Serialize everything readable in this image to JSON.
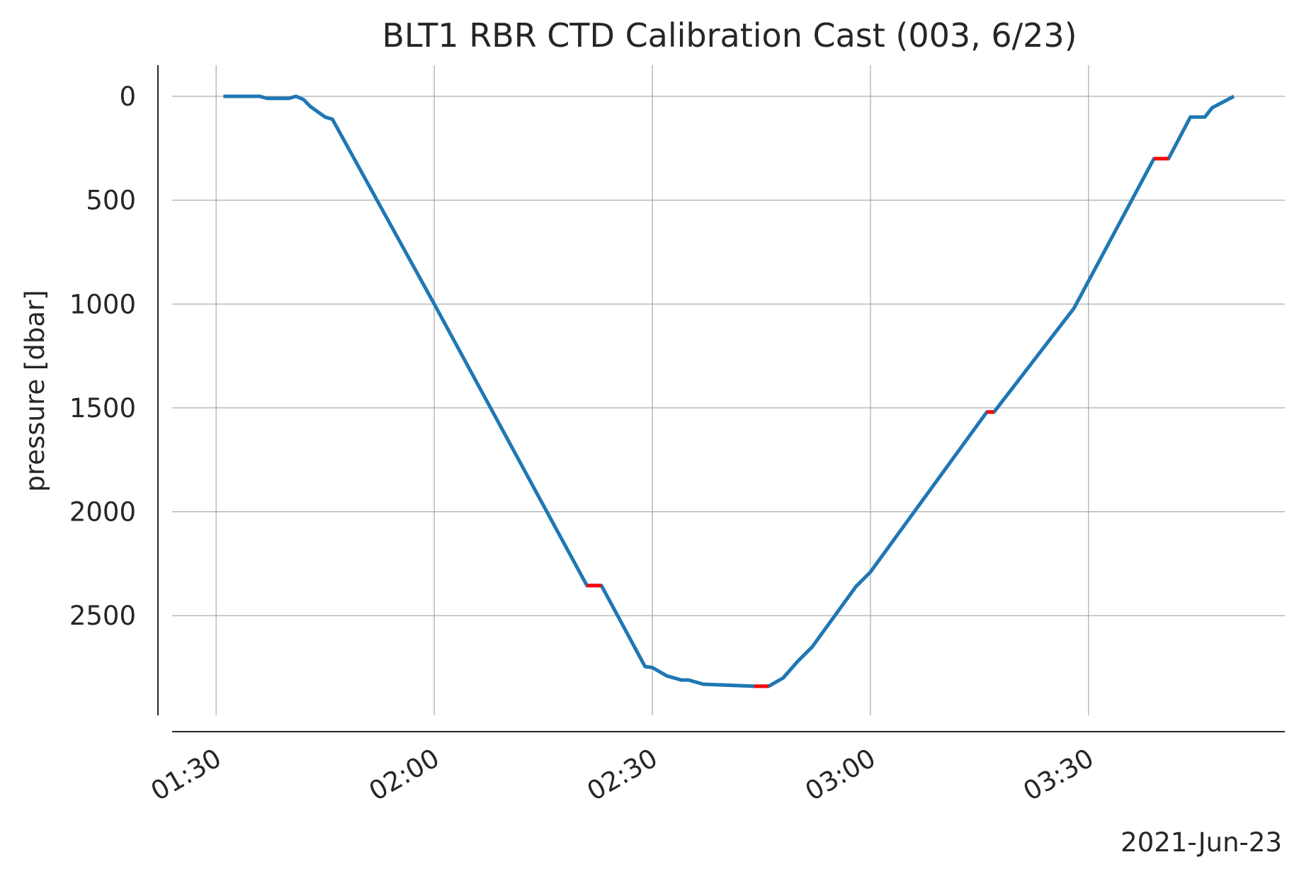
{
  "chart_data": {
    "type": "line",
    "title": "BLT1 RBR CTD Calibration Cast (003, 6/23)",
    "y_label": "pressure [dbar]",
    "date_label": "2021-Jun-23",
    "x": [
      "01:31",
      "01:36",
      "01:37",
      "01:40",
      "01:41",
      "01:42",
      "01:43",
      "01:45",
      "01:46",
      "02:00",
      "02:21",
      "02:23",
      "02:29",
      "02:30",
      "02:32",
      "02:34",
      "02:35",
      "02:37",
      "02:44",
      "02:46",
      "02:48",
      "02:50",
      "02:52",
      "02:58",
      "03:00",
      "03:16",
      "03:17",
      "03:28",
      "03:39",
      "03:41",
      "03:44",
      "03:46",
      "03:47",
      "03:50"
    ],
    "series": [
      {
        "color": "#1f77b4",
        "values": [
          0,
          0,
          10,
          10,
          0,
          15,
          50,
          100,
          110,
          1000,
          2355,
          2355,
          2745,
          2750,
          2790,
          2810,
          2810,
          2830,
          2840,
          2840,
          2800,
          2720,
          2650,
          2360,
          2290,
          1520,
          1520,
          1020,
          300,
          300,
          100,
          100,
          55,
          0
        ]
      },
      {
        "color": "#ff0000",
        "values": [
          null,
          null,
          null,
          null,
          null,
          null,
          null,
          null,
          null,
          null,
          2355,
          2355,
          null,
          null,
          null,
          null,
          null,
          null,
          2840,
          2840,
          null,
          null,
          null,
          null,
          null,
          1520,
          1520,
          null,
          300,
          300,
          null,
          null,
          null,
          null
        ]
      }
    ],
    "xlim": [
      "01:22",
      "03:57"
    ],
    "xticks": [
      "01:30",
      "02:00",
      "02:30",
      "03:00",
      "03:30"
    ],
    "ylim": [
      -150,
      2980
    ],
    "y_inverted": true,
    "yticks": [
      0,
      500,
      1000,
      1500,
      2000,
      2500
    ],
    "grid": true
  }
}
